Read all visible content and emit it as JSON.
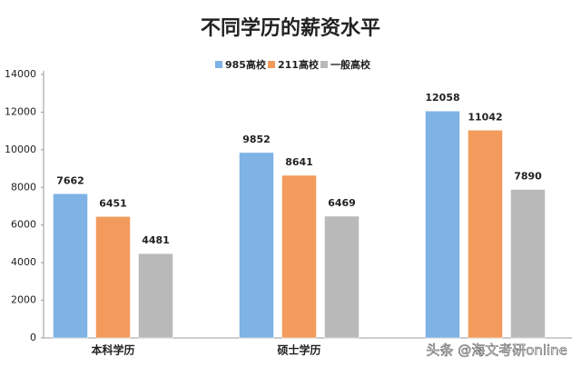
{
  "chart_data": {
    "type": "bar",
    "title": "不同学历的薪资水平",
    "categories": [
      "本科学历",
      "硕士学历",
      null
    ],
    "series": [
      {
        "name": "985高校",
        "color": "#7fb2e5",
        "values": [
          7662,
          9852,
          12058
        ]
      },
      {
        "name": "211高校",
        "color": "#f29b5c",
        "values": [
          6451,
          8641,
          11042
        ]
      },
      {
        "name": "一般高校",
        "color": "#b9b9b9",
        "values": [
          4481,
          6469,
          7890
        ]
      }
    ],
    "ylim": [
      0,
      14000
    ],
    "yticks": [
      0,
      2000,
      4000,
      6000,
      8000,
      10000,
      12000,
      14000
    ],
    "legend": "top"
  },
  "watermark": "头条 @海文考研online"
}
